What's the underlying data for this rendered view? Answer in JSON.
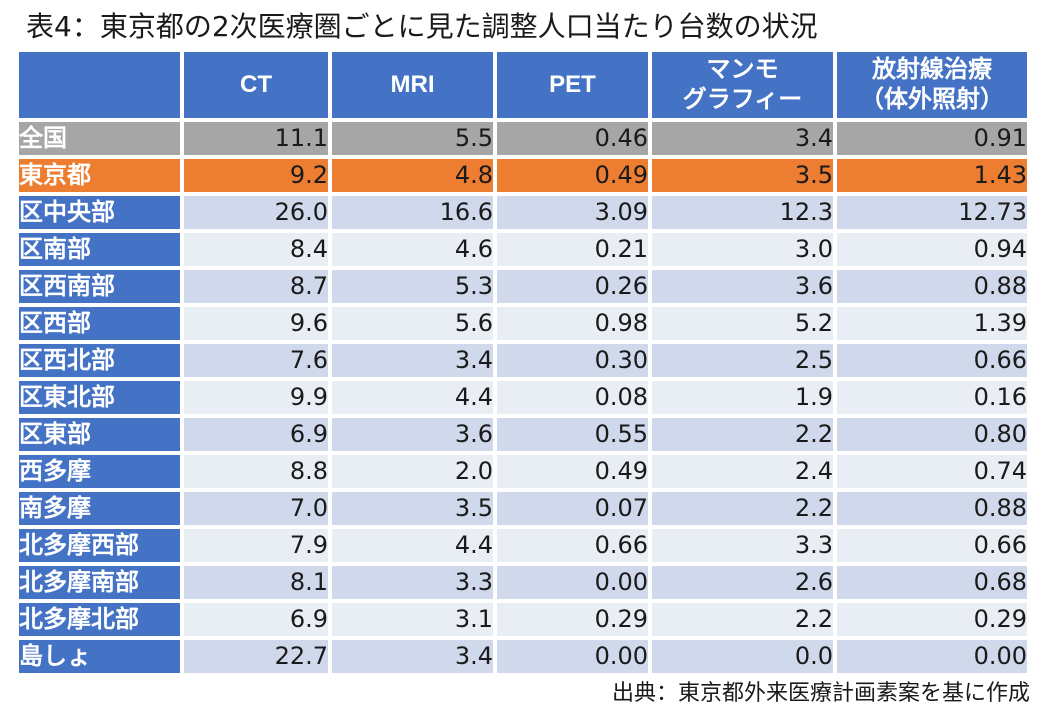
{
  "title": "表4：東京都の2次医療圏ごとに見た調整人口当たり台数の状況",
  "headers": [
    "",
    "CT",
    "MRI",
    "PET",
    "マンモ\nグラフィー",
    "放射線治療\n（体外照射）"
  ],
  "rows": [
    {
      "name": "全国",
      "values": [
        "11.1",
        "5.5",
        "0.46",
        "3.4",
        "0.91"
      ]
    },
    {
      "name": "東京都",
      "values": [
        "9.2",
        "4.8",
        "0.49",
        "3.5",
        "1.43"
      ]
    },
    {
      "name": "区中央部",
      "values": [
        "26.0",
        "16.6",
        "3.09",
        "12.3",
        "12.73"
      ]
    },
    {
      "name": "区南部",
      "values": [
        "8.4",
        "4.6",
        "0.21",
        "3.0",
        "0.94"
      ]
    },
    {
      "name": "区西南部",
      "values": [
        "8.7",
        "5.3",
        "0.26",
        "3.6",
        "0.88"
      ]
    },
    {
      "name": "区西部",
      "values": [
        "9.6",
        "5.6",
        "0.98",
        "5.2",
        "1.39"
      ]
    },
    {
      "name": "区西北部",
      "values": [
        "7.6",
        "3.4",
        "0.30",
        "2.5",
        "0.66"
      ]
    },
    {
      "name": "区東北部",
      "values": [
        "9.9",
        "4.4",
        "0.08",
        "1.9",
        "0.16"
      ]
    },
    {
      "name": "区東部",
      "values": [
        "6.9",
        "3.6",
        "0.55",
        "2.2",
        "0.80"
      ]
    },
    {
      "name": "西多摩",
      "values": [
        "8.8",
        "2.0",
        "0.49",
        "2.4",
        "0.74"
      ]
    },
    {
      "name": "南多摩",
      "values": [
        "7.0",
        "3.5",
        "0.07",
        "2.2",
        "0.88"
      ]
    },
    {
      "name": "北多摩西部",
      "values": [
        "7.9",
        "4.4",
        "0.66",
        "3.3",
        "0.66"
      ]
    },
    {
      "name": "北多摩南部",
      "values": [
        "8.1",
        "3.3",
        "0.00",
        "2.6",
        "0.68"
      ]
    },
    {
      "name": "北多摩北部",
      "values": [
        "6.9",
        "3.1",
        "0.29",
        "2.2",
        "0.29"
      ]
    },
    {
      "name": "島しょ",
      "values": [
        "22.7",
        "3.4",
        "0.00",
        "0.0",
        "0.00"
      ]
    }
  ],
  "source": "出典：東京都外来医療計画素案を基に作成",
  "colors": {
    "header_blue": "#4472c4",
    "national_gray": "#a6a6a6",
    "tokyo_orange": "#ed7d31",
    "band_dark": "#d0d8eb",
    "band_light": "#e9edf4"
  }
}
